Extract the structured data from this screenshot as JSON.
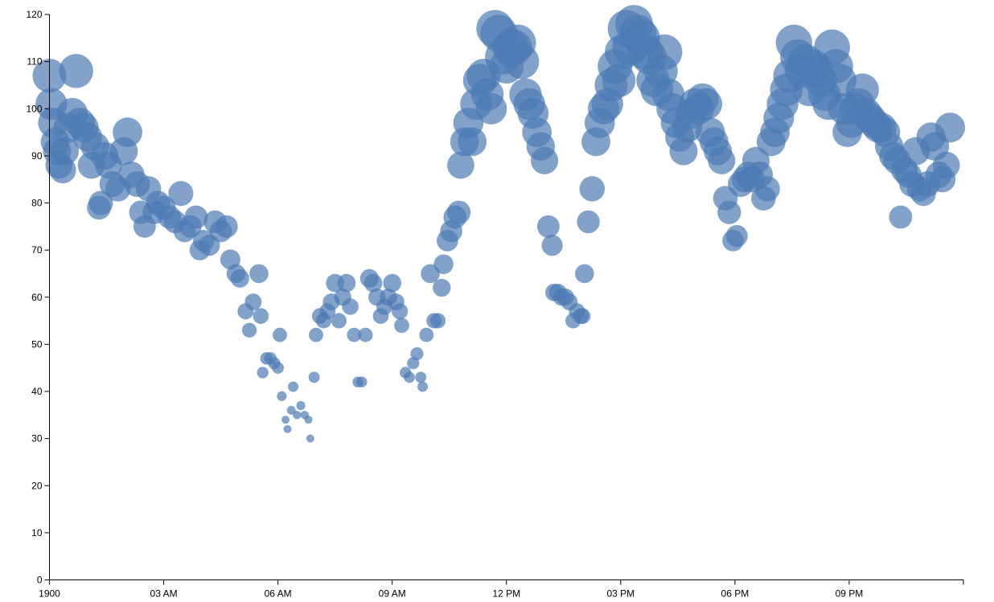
{
  "chart_data": {
    "type": "scatter",
    "title": "",
    "xlabel": "",
    "ylabel": "",
    "x_unit": "hours since midnight",
    "xlim": [
      0,
      24
    ],
    "ylim": [
      0,
      120
    ],
    "y_ticks": [
      0,
      10,
      20,
      30,
      40,
      50,
      60,
      70,
      80,
      90,
      100,
      110,
      120
    ],
    "x_tick_labels": [
      "1900",
      "03 AM",
      "06 AM",
      "09 AM",
      "12 PM",
      "03 PM",
      "06 PM",
      "09 PM"
    ],
    "x_tick_values": [
      0,
      3,
      6,
      9,
      12,
      15,
      18,
      21
    ],
    "point_color": "#4d7bb3",
    "size_encoding": "bubble radius grows with value",
    "grid": false,
    "legend": "none",
    "points": [
      [
        0.0,
        107
      ],
      [
        0.05,
        101
      ],
      [
        0.1,
        97
      ],
      [
        0.15,
        93
      ],
      [
        0.2,
        91
      ],
      [
        0.25,
        88
      ],
      [
        0.35,
        87
      ],
      [
        0.4,
        91
      ],
      [
        0.5,
        96
      ],
      [
        0.6,
        99
      ],
      [
        0.7,
        108
      ],
      [
        0.8,
        97
      ],
      [
        0.9,
        96
      ],
      [
        1.0,
        94
      ],
      [
        1.1,
        88
      ],
      [
        1.2,
        92
      ],
      [
        1.3,
        79
      ],
      [
        1.35,
        80
      ],
      [
        1.45,
        90
      ],
      [
        1.55,
        88
      ],
      [
        1.65,
        84
      ],
      [
        1.8,
        83
      ],
      [
        1.95,
        91
      ],
      [
        2.05,
        95
      ],
      [
        2.15,
        86
      ],
      [
        2.3,
        84
      ],
      [
        2.4,
        78
      ],
      [
        2.5,
        75
      ],
      [
        2.6,
        83
      ],
      [
        2.75,
        78
      ],
      [
        2.85,
        80
      ],
      [
        3.0,
        79
      ],
      [
        3.15,
        77
      ],
      [
        3.3,
        76
      ],
      [
        3.45,
        82
      ],
      [
        3.55,
        74
      ],
      [
        3.7,
        75
      ],
      [
        3.85,
        77
      ],
      [
        3.95,
        70
      ],
      [
        4.05,
        72
      ],
      [
        4.2,
        71
      ],
      [
        4.35,
        76
      ],
      [
        4.5,
        74
      ],
      [
        4.65,
        75
      ],
      [
        4.75,
        68
      ],
      [
        4.9,
        65
      ],
      [
        5.0,
        64
      ],
      [
        5.15,
        57
      ],
      [
        5.25,
        53
      ],
      [
        5.35,
        59
      ],
      [
        5.5,
        65
      ],
      [
        5.55,
        56
      ],
      [
        5.6,
        44
      ],
      [
        5.7,
        47
      ],
      [
        5.8,
        47
      ],
      [
        5.9,
        46
      ],
      [
        6.0,
        45
      ],
      [
        6.05,
        52
      ],
      [
        6.1,
        39
      ],
      [
        6.2,
        34
      ],
      [
        6.25,
        32
      ],
      [
        6.35,
        36
      ],
      [
        6.4,
        41
      ],
      [
        6.5,
        35
      ],
      [
        6.6,
        37
      ],
      [
        6.7,
        35
      ],
      [
        6.8,
        34
      ],
      [
        6.85,
        30
      ],
      [
        6.95,
        43
      ],
      [
        7.0,
        52
      ],
      [
        7.1,
        56
      ],
      [
        7.2,
        55
      ],
      [
        7.3,
        57
      ],
      [
        7.4,
        59
      ],
      [
        7.5,
        63
      ],
      [
        7.6,
        55
      ],
      [
        7.7,
        60
      ],
      [
        7.8,
        63
      ],
      [
        7.9,
        58
      ],
      [
        8.0,
        52
      ],
      [
        8.1,
        42
      ],
      [
        8.2,
        42
      ],
      [
        8.3,
        52
      ],
      [
        8.4,
        64
      ],
      [
        8.5,
        63
      ],
      [
        8.6,
        60
      ],
      [
        8.7,
        56
      ],
      [
        8.8,
        58
      ],
      [
        8.9,
        60
      ],
      [
        9.0,
        63
      ],
      [
        9.1,
        59
      ],
      [
        9.2,
        57
      ],
      [
        9.25,
        54
      ],
      [
        9.35,
        44
      ],
      [
        9.45,
        43
      ],
      [
        9.55,
        46
      ],
      [
        9.65,
        48
      ],
      [
        9.75,
        43
      ],
      [
        9.8,
        41
      ],
      [
        9.9,
        52
      ],
      [
        10.0,
        65
      ],
      [
        10.1,
        55
      ],
      [
        10.2,
        55
      ],
      [
        10.3,
        62
      ],
      [
        10.35,
        67
      ],
      [
        10.45,
        72
      ],
      [
        10.55,
        74
      ],
      [
        10.65,
        77
      ],
      [
        10.75,
        78
      ],
      [
        10.8,
        88
      ],
      [
        10.9,
        93
      ],
      [
        11.0,
        97
      ],
      [
        11.1,
        93
      ],
      [
        11.2,
        101
      ],
      [
        11.3,
        106
      ],
      [
        11.4,
        107
      ],
      [
        11.5,
        103
      ],
      [
        11.6,
        100
      ],
      [
        11.7,
        117
      ],
      [
        11.8,
        116
      ],
      [
        11.9,
        111
      ],
      [
        12.0,
        109
      ],
      [
        12.1,
        113
      ],
      [
        12.2,
        113
      ],
      [
        12.3,
        114
      ],
      [
        12.4,
        110
      ],
      [
        12.5,
        103
      ],
      [
        12.6,
        101
      ],
      [
        12.7,
        99
      ],
      [
        12.8,
        95
      ],
      [
        12.9,
        92
      ],
      [
        13.0,
        89
      ],
      [
        13.1,
        75
      ],
      [
        13.2,
        71
      ],
      [
        13.25,
        61
      ],
      [
        13.35,
        61
      ],
      [
        13.45,
        60
      ],
      [
        13.55,
        60
      ],
      [
        13.65,
        59
      ],
      [
        13.75,
        55
      ],
      [
        13.85,
        57
      ],
      [
        13.95,
        56
      ],
      [
        14.0,
        56
      ],
      [
        14.05,
        65
      ],
      [
        14.15,
        76
      ],
      [
        14.25,
        83
      ],
      [
        14.35,
        93
      ],
      [
        14.45,
        97
      ],
      [
        14.55,
        100
      ],
      [
        14.65,
        101
      ],
      [
        14.75,
        105
      ],
      [
        14.85,
        109
      ],
      [
        14.95,
        106
      ],
      [
        15.05,
        112
      ],
      [
        15.15,
        117
      ],
      [
        15.25,
        113
      ],
      [
        15.35,
        118
      ],
      [
        15.45,
        116
      ],
      [
        15.55,
        115
      ],
      [
        15.65,
        112
      ],
      [
        15.75,
        111
      ],
      [
        15.85,
        106
      ],
      [
        15.95,
        104
      ],
      [
        16.05,
        108
      ],
      [
        16.15,
        112
      ],
      [
        16.25,
        103
      ],
      [
        16.35,
        100
      ],
      [
        16.45,
        97
      ],
      [
        16.55,
        94
      ],
      [
        16.65,
        91
      ],
      [
        16.75,
        96
      ],
      [
        16.85,
        99
      ],
      [
        16.95,
        101
      ],
      [
        17.05,
        100
      ],
      [
        17.15,
        102
      ],
      [
        17.25,
        101
      ],
      [
        17.35,
        95
      ],
      [
        17.45,
        93
      ],
      [
        17.55,
        91
      ],
      [
        17.65,
        89
      ],
      [
        17.75,
        81
      ],
      [
        17.85,
        78
      ],
      [
        17.95,
        72
      ],
      [
        18.05,
        73
      ],
      [
        18.15,
        84
      ],
      [
        18.25,
        85
      ],
      [
        18.35,
        86
      ],
      [
        18.45,
        85
      ],
      [
        18.55,
        89
      ],
      [
        18.65,
        86
      ],
      [
        18.75,
        81
      ],
      [
        18.85,
        83
      ],
      [
        18.95,
        93
      ],
      [
        19.05,
        95
      ],
      [
        19.15,
        98
      ],
      [
        19.25,
        101
      ],
      [
        19.35,
        104
      ],
      [
        19.45,
        107
      ],
      [
        19.55,
        114
      ],
      [
        19.65,
        111
      ],
      [
        19.75,
        108
      ],
      [
        19.85,
        110
      ],
      [
        19.95,
        104
      ],
      [
        20.05,
        109
      ],
      [
        20.15,
        108
      ],
      [
        20.25,
        106
      ],
      [
        20.35,
        103
      ],
      [
        20.45,
        101
      ],
      [
        20.55,
        113
      ],
      [
        20.65,
        109
      ],
      [
        20.75,
        106
      ],
      [
        20.85,
        100
      ],
      [
        20.95,
        95
      ],
      [
        21.05,
        97
      ],
      [
        21.15,
        100
      ],
      [
        21.25,
        101
      ],
      [
        21.35,
        104
      ],
      [
        21.45,
        99
      ],
      [
        21.55,
        98
      ],
      [
        21.65,
        97
      ],
      [
        21.75,
        96
      ],
      [
        21.85,
        96
      ],
      [
        21.95,
        95
      ],
      [
        22.05,
        92
      ],
      [
        22.15,
        90
      ],
      [
        22.25,
        89
      ],
      [
        22.35,
        77
      ],
      [
        22.45,
        87
      ],
      [
        22.55,
        86
      ],
      [
        22.65,
        84
      ],
      [
        22.75,
        91
      ],
      [
        22.85,
        83
      ],
      [
        22.95,
        82
      ],
      [
        23.05,
        84
      ],
      [
        23.15,
        94
      ],
      [
        23.25,
        92
      ],
      [
        23.35,
        86
      ],
      [
        23.45,
        85
      ],
      [
        23.55,
        88
      ],
      [
        23.65,
        96
      ]
    ]
  }
}
